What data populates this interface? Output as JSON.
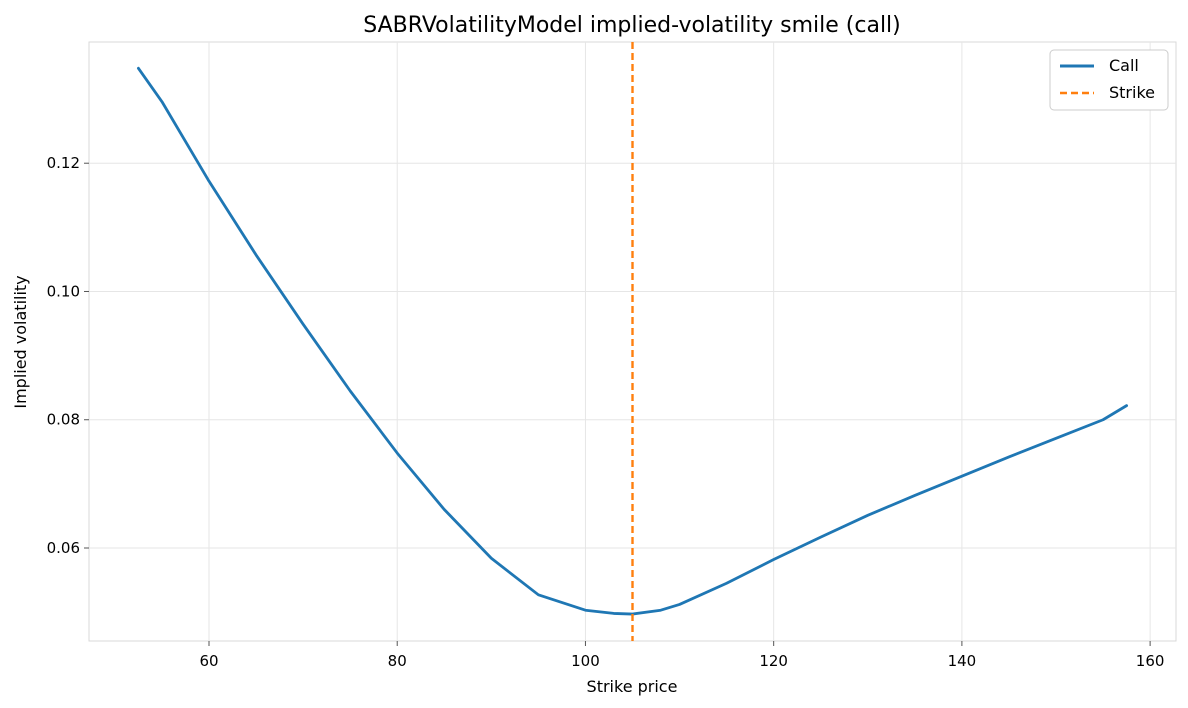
{
  "chart_data": {
    "type": "line",
    "title": "SABRVolatilityModel implied-volatility smile (call)",
    "xlabel": "Strike price",
    "ylabel": "Implied volatility",
    "xlim": [
      47.25,
      162.75
    ],
    "ylim": [
      0.0455,
      0.1389
    ],
    "xticks": [
      60,
      80,
      100,
      120,
      140,
      160
    ],
    "yticks": [
      0.06,
      0.08,
      0.1,
      0.12
    ],
    "xtick_labels": [
      "60",
      "80",
      "100",
      "120",
      "140",
      "160"
    ],
    "ytick_labels": [
      "0.06",
      "0.08",
      "0.10",
      "0.12"
    ],
    "grid": true,
    "legend_position": "top-right",
    "series": [
      {
        "name": "Call",
        "style": "solid",
        "color": "#1f77b4",
        "x": [
          52.5,
          55,
          60,
          65,
          70,
          75,
          80,
          85,
          90,
          95,
          100,
          103,
          105,
          108,
          110,
          115,
          120,
          125,
          130,
          135,
          140,
          145,
          150,
          155,
          157.5
        ],
        "y": [
          0.1348,
          0.1296,
          0.1172,
          0.1057,
          0.0949,
          0.0845,
          0.0748,
          0.066,
          0.0584,
          0.0527,
          0.0503,
          0.0498,
          0.0497,
          0.0503,
          0.0512,
          0.0545,
          0.0582,
          0.0617,
          0.0651,
          0.0682,
          0.0712,
          0.0742,
          0.0771,
          0.08,
          0.0822
        ]
      },
      {
        "name": "Strike",
        "style": "dashed",
        "color": "#ff7f0e",
        "x_value": 105
      }
    ]
  }
}
